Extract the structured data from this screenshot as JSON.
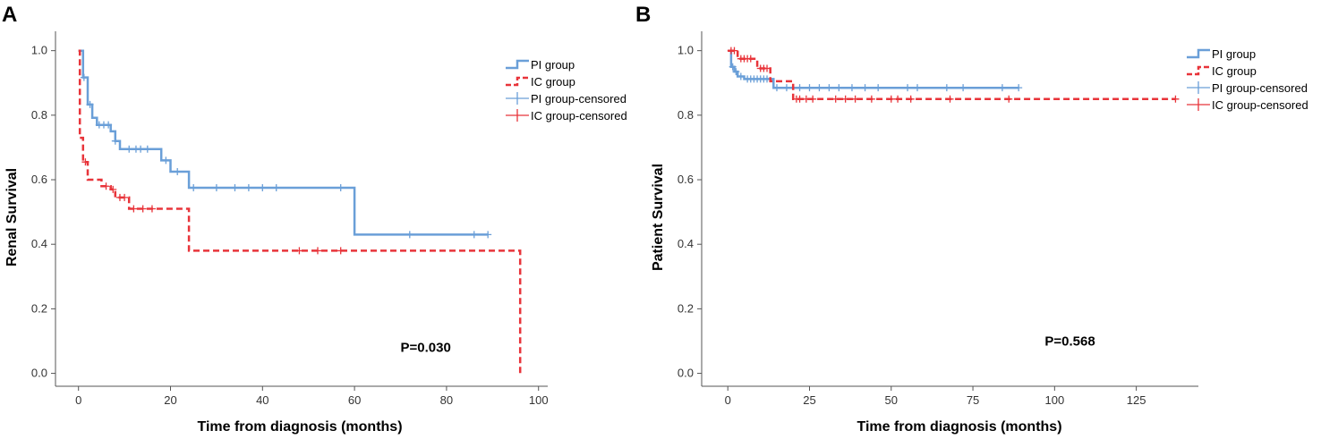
{
  "chart_data": [
    {
      "panel_letter": "A",
      "type": "line",
      "subtype": "kaplan-meier",
      "xlabel": "Time from diagnosis (months)",
      "ylabel": "Renal Survival",
      "xlim": [
        -5,
        102
      ],
      "ylim": [
        -0.04,
        1.06
      ],
      "xticks": [
        0,
        20,
        40,
        60,
        80,
        100
      ],
      "xtick_labels": [
        "0",
        "20",
        "40",
        "60",
        "80",
        "100"
      ],
      "yticks": [
        0,
        0.2,
        0.4,
        0.6,
        0.8,
        1.0
      ],
      "ytick_labels": [
        "0.0",
        "0.2",
        "0.4",
        "0.6",
        "0.8",
        "1.0"
      ],
      "annotation": "P=0.030",
      "annotation_at": [
        70,
        0.08
      ],
      "legend_position": "top-right",
      "legend": [
        "PI group",
        "IC group",
        "PI group-censored",
        "IC group-censored"
      ],
      "series": [
        {
          "name": "PI group",
          "color": "#6a9fd8",
          "style": "solid",
          "steps": [
            [
              0,
              1.0
            ],
            [
              1,
              0.917
            ],
            [
              2,
              0.833
            ],
            [
              3,
              0.792
            ],
            [
              4,
              0.77
            ],
            [
              7,
              0.75
            ],
            [
              8,
              0.72
            ],
            [
              9,
              0.695
            ],
            [
              18,
              0.66
            ],
            [
              20,
              0.625
            ],
            [
              24,
              0.575
            ],
            [
              60,
              0.43
            ],
            [
              89,
              0.43
            ]
          ],
          "censored": [
            1.2,
            2.5,
            4.5,
            5.5,
            6.5,
            8,
            11,
            12.5,
            13.5,
            15,
            19,
            21.5,
            25,
            30,
            34,
            37,
            40,
            43,
            57,
            72,
            86,
            89
          ]
        },
        {
          "name": "IC group",
          "color": "#e8343a",
          "style": "dashed",
          "steps": [
            [
              0,
              1.0
            ],
            [
              0.3,
              0.73
            ],
            [
              1,
              0.655
            ],
            [
              2,
              0.6
            ],
            [
              5,
              0.58
            ],
            [
              7,
              0.57
            ],
            [
              8,
              0.545
            ],
            [
              11,
              0.51
            ],
            [
              24,
              0.38
            ],
            [
              96,
              0.0
            ]
          ],
          "censored": [
            1.5,
            6,
            7.5,
            9,
            10,
            12,
            14,
            16,
            48,
            52,
            57
          ]
        }
      ]
    },
    {
      "panel_letter": "B",
      "type": "line",
      "subtype": "kaplan-meier",
      "xlabel": "Time from diagnosis (months)",
      "ylabel": "Patient Survival",
      "xlim": [
        -8,
        144
      ],
      "ylim": [
        -0.04,
        1.06
      ],
      "xticks": [
        0,
        25,
        50,
        75,
        100,
        125
      ],
      "xtick_labels": [
        "0",
        "25",
        "50",
        "75",
        "100",
        "125"
      ],
      "yticks": [
        0,
        0.2,
        0.4,
        0.6,
        0.8,
        1.0
      ],
      "ytick_labels": [
        "0.0",
        "0.2",
        "0.4",
        "0.6",
        "0.8",
        "1.0"
      ],
      "annotation": "P=0.568",
      "annotation_at": [
        97,
        0.1
      ],
      "legend_position": "top-right",
      "legend": [
        "PI group",
        "IC group",
        "PI group-censored",
        "IC group-censored"
      ],
      "series": [
        {
          "name": "PI group",
          "color": "#6a9fd8",
          "style": "solid",
          "steps": [
            [
              0,
              1.0
            ],
            [
              1,
              0.95
            ],
            [
              2,
              0.935
            ],
            [
              3,
              0.92
            ],
            [
              5,
              0.912
            ],
            [
              14,
              0.885
            ],
            [
              89,
              0.885
            ]
          ],
          "censored": [
            1.5,
            2.5,
            4,
            6,
            7,
            8,
            9,
            10,
            11,
            12,
            15,
            18,
            22,
            25,
            28,
            31,
            34,
            38,
            42,
            46,
            55,
            58,
            67,
            72,
            84,
            89
          ]
        },
        {
          "name": "IC group",
          "color": "#e8343a",
          "style": "dashed",
          "steps": [
            [
              0,
              1.0
            ],
            [
              3,
              0.975
            ],
            [
              9,
              0.945
            ],
            [
              13,
              0.905
            ],
            [
              20,
              0.85
            ],
            [
              137,
              0.85
            ]
          ],
          "censored": [
            1,
            2,
            4,
            5,
            6,
            7,
            10,
            11,
            12,
            21,
            22,
            24,
            26,
            33,
            36,
            39,
            44,
            50,
            52,
            56,
            68,
            86,
            137
          ]
        }
      ]
    }
  ]
}
